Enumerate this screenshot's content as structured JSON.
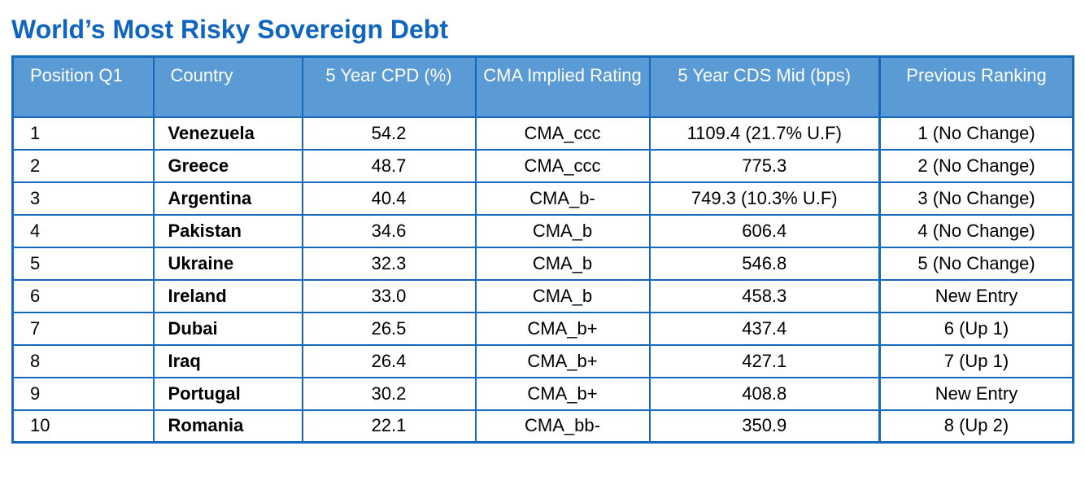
{
  "page": {
    "title": "World’s Most Risky Sovereign Debt"
  },
  "colors": {
    "title_blue": "#0f65c0",
    "border_blue": "#1569bd",
    "header_blue": "#5b9bd5",
    "header_text": "#ffffff",
    "up_green": "#12a659",
    "body_text": "#000000"
  },
  "table": {
    "columns": [
      {
        "label": "Position Q1"
      },
      {
        "label": "Country"
      },
      {
        "label": "5 Year CPD (%)"
      },
      {
        "label": "CMA Implied Rating"
      },
      {
        "label": "5 Year CDS Mid (bps)"
      },
      {
        "label": "Previous Ranking"
      }
    ],
    "rows": [
      {
        "position": "1",
        "country": "Venezuela",
        "cpd": "54.2",
        "rating": "CMA_ccc",
        "cds": "1109.4 (21.7% U.F)",
        "previous": "1 (No Change)",
        "previous_trend": "none"
      },
      {
        "position": "2",
        "country": "Greece",
        "cpd": "48.7",
        "rating": "CMA_ccc",
        "cds": "775.3",
        "previous": "2 (No Change)",
        "previous_trend": "none"
      },
      {
        "position": "3",
        "country": "Argentina",
        "cpd": "40.4",
        "rating": "CMA_b-",
        "cds": "749.3 (10.3% U.F)",
        "previous": "3 (No Change)",
        "previous_trend": "none"
      },
      {
        "position": "4",
        "country": "Pakistan",
        "cpd": "34.6",
        "rating": "CMA_b",
        "cds": "606.4",
        "previous": "4 (No Change)",
        "previous_trend": "none"
      },
      {
        "position": "5",
        "country": "Ukraine",
        "cpd": "32.3",
        "rating": "CMA_b",
        "cds": "546.8",
        "previous": "5 (No Change)",
        "previous_trend": "none"
      },
      {
        "position": "6",
        "country": "Ireland",
        "cpd": "33.0",
        "rating": "CMA_b",
        "cds": "458.3",
        "previous": "New Entry",
        "previous_trend": "none"
      },
      {
        "position": "7",
        "country": "Dubai",
        "cpd": "26.5",
        "rating": "CMA_b+",
        "cds": "437.4",
        "previous": "6 (Up 1)",
        "previous_trend": "up"
      },
      {
        "position": "8",
        "country": "Iraq",
        "cpd": "26.4",
        "rating": "CMA_b+",
        "cds": "427.1",
        "previous": "7 (Up 1)",
        "previous_trend": "up"
      },
      {
        "position": "9",
        "country": "Portugal",
        "cpd": "30.2",
        "rating": "CMA_b+",
        "cds": "408.8",
        "previous": "New Entry",
        "previous_trend": "none"
      },
      {
        "position": "10",
        "country": "Romania",
        "cpd": "22.1",
        "rating": "CMA_bb-",
        "cds": "350.9",
        "previous": "8 (Up 2)",
        "previous_trend": "up"
      }
    ]
  }
}
